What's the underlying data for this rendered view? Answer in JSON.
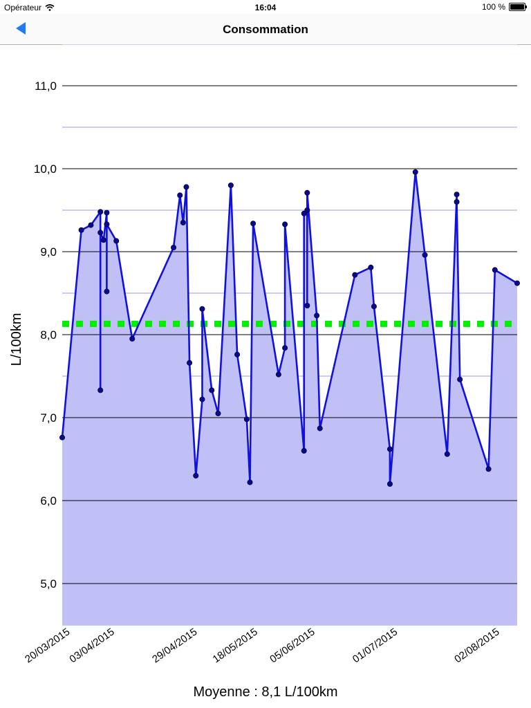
{
  "status_bar": {
    "carrier": "Opérateur",
    "time": "16:04",
    "battery": "100 %"
  },
  "nav": {
    "title": "Consommation",
    "back_icon": "back-arrow-icon"
  },
  "footer": {
    "average_text": "Moyenne : 8,1 L/100km"
  },
  "colors": {
    "line": "#1010e0",
    "fill": "#c0c0f6",
    "marker": "#0a0a8a",
    "average": "#00ee00",
    "grid_major": "#000000",
    "grid_minor": "#9a9af0",
    "accent": "#1e7cf0"
  },
  "chart_data": {
    "type": "area",
    "ylabel": "L/100km",
    "ylim": [
      4.5,
      11.5
    ],
    "yticks": [
      "11,0",
      "10,0",
      "9,0",
      "8,0",
      "7,0",
      "6,0",
      "5,0"
    ],
    "ytick_values": [
      11,
      10,
      9,
      8,
      7,
      6,
      5
    ],
    "xlim": [
      "2015-03-20",
      "2015-08-10"
    ],
    "xticks": [
      "20/03/2015",
      "03/04/2015",
      "29/04/2015",
      "18/05/2015",
      "05/06/2015",
      "01/07/2015",
      "02/08/2015"
    ],
    "xtick_dates": [
      "2015-03-20",
      "2015-04-03",
      "2015-04-29",
      "2015-05-18",
      "2015-06-05",
      "2015-07-01",
      "2015-08-02"
    ],
    "average": 8.13,
    "series": [
      {
        "points": [
          [
            "2015-03-20",
            6.76
          ],
          [
            "2015-03-26",
            9.26
          ],
          [
            "2015-03-29",
            9.32
          ],
          [
            "2015-04-01",
            9.48
          ],
          [
            "2015-04-01",
            7.33
          ],
          [
            "2015-04-01",
            9.23
          ],
          [
            "2015-04-02",
            9.14
          ],
          [
            "2015-04-03",
            9.47
          ],
          [
            "2015-04-03",
            8.52
          ],
          [
            "2015-04-03",
            9.33
          ],
          [
            "2015-04-06",
            9.13
          ],
          [
            "2015-04-11",
            7.95
          ],
          [
            "2015-04-24",
            9.05
          ],
          [
            "2015-04-26",
            9.68
          ],
          [
            "2015-04-27",
            9.35
          ],
          [
            "2015-04-28",
            9.78
          ],
          [
            "2015-04-29",
            7.66
          ],
          [
            "2015-05-01",
            6.3
          ],
          [
            "2015-05-03",
            7.22
          ],
          [
            "2015-05-03",
            8.31
          ],
          [
            "2015-05-06",
            7.33
          ],
          [
            "2015-05-08",
            7.05
          ],
          [
            "2015-05-12",
            9.8
          ],
          [
            "2015-05-14",
            7.76
          ],
          [
            "2015-05-17",
            6.98
          ],
          [
            "2015-05-18",
            6.22
          ],
          [
            "2015-05-19",
            9.34
          ],
          [
            "2015-05-27",
            7.52
          ],
          [
            "2015-05-29",
            7.84
          ],
          [
            "2015-05-29",
            9.33
          ],
          [
            "2015-06-04",
            6.6
          ],
          [
            "2015-06-04",
            9.46
          ],
          [
            "2015-06-05",
            9.5
          ],
          [
            "2015-06-05",
            8.35
          ],
          [
            "2015-06-05",
            9.71
          ],
          [
            "2015-06-08",
            8.23
          ],
          [
            "2015-06-09",
            6.87
          ],
          [
            "2015-06-20",
            8.72
          ],
          [
            "2015-06-25",
            8.81
          ],
          [
            "2015-06-26",
            8.34
          ],
          [
            "2015-07-01",
            6.62
          ],
          [
            "2015-07-01",
            6.2
          ],
          [
            "2015-07-09",
            9.96
          ],
          [
            "2015-07-12",
            8.96
          ],
          [
            "2015-07-19",
            6.56
          ],
          [
            "2015-07-22",
            9.69
          ],
          [
            "2015-07-22",
            9.6
          ],
          [
            "2015-07-23",
            7.46
          ],
          [
            "2015-08-01",
            6.38
          ],
          [
            "2015-08-03",
            8.78
          ],
          [
            "2015-08-10",
            8.62
          ]
        ]
      }
    ]
  }
}
